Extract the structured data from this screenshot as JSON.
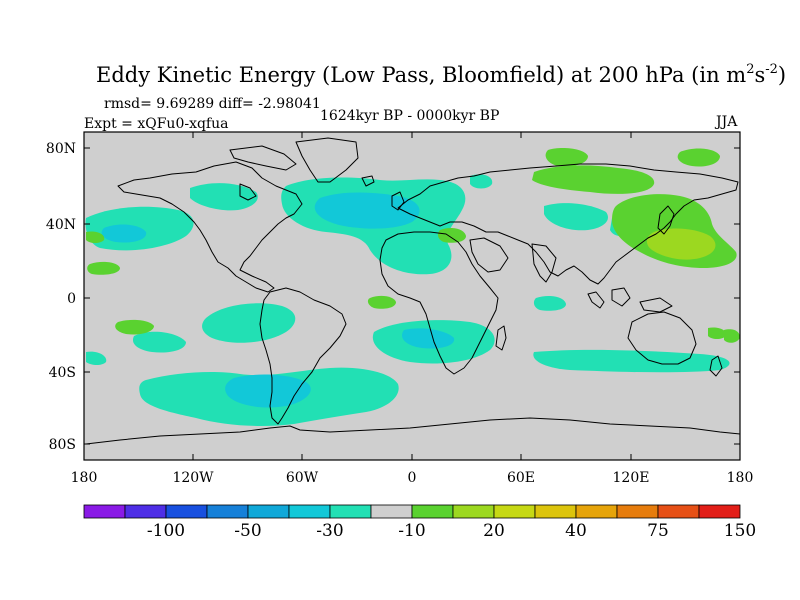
{
  "title": {
    "main": "Eddy Kinetic Energy (Low Pass, Bloomfield) at 200 hPa (in m",
    "unit_sup1": "2",
    "unit_mid": "s",
    "unit_sup2": "-2",
    "unit_close": ")"
  },
  "stats": "rmsd= 9.69289 diff= -2.98041",
  "experiment": "Expt = xQFu0-xqfua",
  "period": "1624kyr BP - 0000kyr BP",
  "season": "JJA",
  "lat_labels": [
    "80N",
    "40N",
    "0",
    "40S",
    "80S"
  ],
  "lon_labels": [
    "180",
    "120W",
    "60W",
    "0",
    "60E",
    "120E",
    "180"
  ],
  "colorbar": {
    "labels": [
      "-100",
      "-50",
      "-30",
      "-10",
      "20",
      "40",
      "75",
      "150"
    ],
    "colors": [
      "#8a1ae6",
      "#4e2ee6",
      "#1850e0",
      "#1680d8",
      "#10a8d8",
      "#12c8d8",
      "#22e0b4",
      "#cfcfcf",
      "#5ad230",
      "#9cd820",
      "#c6d814",
      "#dcc40c",
      "#e6a40a",
      "#e67c0c",
      "#e65016",
      "#e21e18"
    ]
  },
  "colors": {
    "land_background": "#cfcfcf",
    "coast": "#000000",
    "aqua": "#22e0b4",
    "cyan": "#12c8d8",
    "green": "#5ad230",
    "yellowgreen": "#9cd820"
  }
}
